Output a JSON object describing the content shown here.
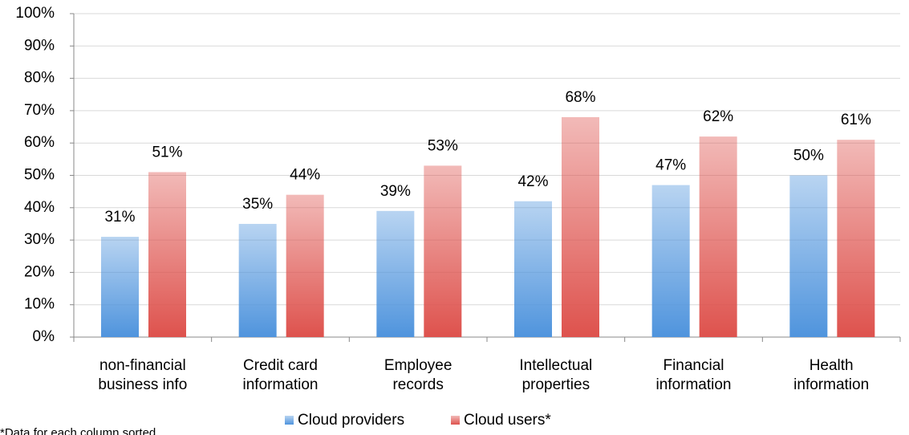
{
  "chart_data": {
    "type": "bar",
    "categories": [
      "non-financial\nbusiness info",
      "Credit card\ninformation",
      "Employee\nrecords",
      "Intellectual\nproperties",
      "Financial\ninformation",
      "Health\ninformation"
    ],
    "series": [
      {
        "name": "Cloud providers",
        "color": "#4f94dd",
        "values": [
          31,
          35,
          39,
          42,
          47,
          50
        ],
        "value_labels": [
          "31%",
          "35%",
          "39%",
          "42%",
          "47%",
          "50%"
        ]
      },
      {
        "name": "Cloud users*",
        "color": "#de524d",
        "values": [
          51,
          44,
          53,
          68,
          62,
          61
        ],
        "value_labels": [
          "51%",
          "44%",
          "53%",
          "68%",
          "62%",
          "61%"
        ]
      }
    ],
    "ylim": [
      0,
      100
    ],
    "yticks": [
      {
        "value": 0,
        "label": "0%"
      },
      {
        "value": 10,
        "label": "10%"
      },
      {
        "value": 20,
        "label": "20%"
      },
      {
        "value": 30,
        "label": "30%"
      },
      {
        "value": 40,
        "label": "40%"
      },
      {
        "value": 50,
        "label": "50%"
      },
      {
        "value": 60,
        "label": "60%"
      },
      {
        "value": 70,
        "label": "70%"
      },
      {
        "value": 80,
        "label": "80%"
      },
      {
        "value": 90,
        "label": "90%"
      },
      {
        "value": 100,
        "label": "100%"
      }
    ],
    "grid": true,
    "legend": "bottom",
    "footnote": "*Data for each column sorted"
  }
}
